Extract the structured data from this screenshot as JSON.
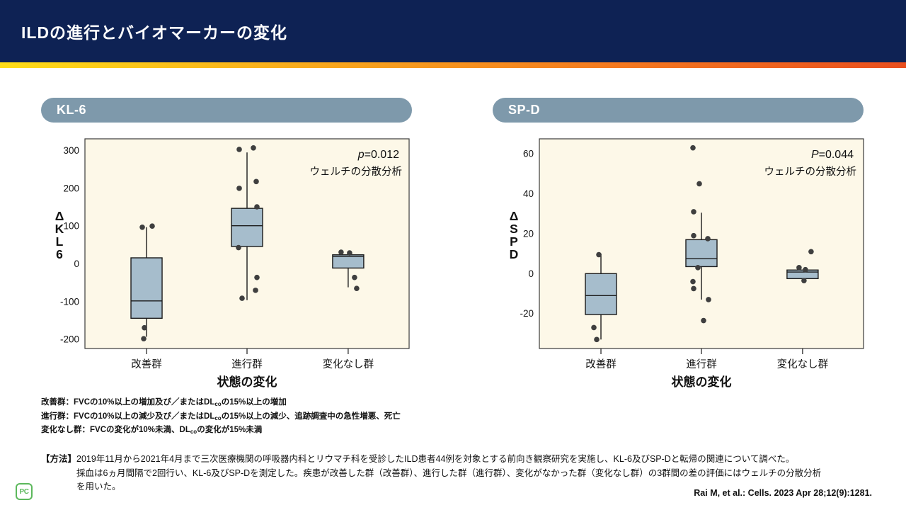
{
  "header": {
    "title": "ILDの進行とバイオマーカーの変化"
  },
  "palette": {
    "header_bg": "#0e2254",
    "gradient": [
      "#ffdd17",
      "#f8a81c",
      "#f4791f",
      "#e94e1e"
    ],
    "pill_bg": "#7e99ab",
    "plot_bg": "#fdf8e8",
    "plot_border": "#3a3a3a",
    "box_fill": "#a6bdcc",
    "box_stroke": "#1b1b1b",
    "dot_color": "#3f3f3f",
    "logo_green": "#5cb85c"
  },
  "chart_data": [
    {
      "type": "boxplot",
      "panel_label": "KL-6",
      "stat": {
        "label": "p",
        "rest": "=0.012"
      },
      "method_note": "ウェルチの分散分析",
      "ylabel_chars": [
        "Δ",
        "K",
        "L",
        "6"
      ],
      "xlabel": "状態の変化",
      "categories": [
        "改善群",
        "進行群",
        "変化なし群"
      ],
      "ylim": [
        -224,
        331
      ],
      "yticks": [
        300,
        200,
        100,
        0,
        -100,
        -200
      ],
      "grid": false,
      "groups": [
        {
          "name": "改善群",
          "q1": -144,
          "median": -98,
          "q3": 16,
          "whisker_low": -193,
          "whisker_high": 97,
          "points": [
            [
              -6,
              97
            ],
            [
              8,
              100
            ],
            [
              -3,
              -169
            ],
            [
              -4,
              -198
            ]
          ]
        },
        {
          "name": "進行群",
          "q1": 46,
          "median": 101,
          "q3": 147,
          "whisker_low": -96,
          "whisker_high": 295,
          "points": [
            [
              -11,
              303
            ],
            [
              9,
              307
            ],
            [
              13,
              218
            ],
            [
              -11,
              200
            ],
            [
              14,
              151
            ],
            [
              -12,
              43
            ],
            [
              14,
              -36
            ],
            [
              12,
              -70
            ],
            [
              -7,
              -91
            ]
          ]
        },
        {
          "name": "変化なし群",
          "q1": -11,
          "median": 20,
          "q3": 24,
          "whisker_low": -62,
          "whisker_high": 24,
          "points": [
            [
              -10,
              31
            ],
            [
              2,
              29
            ],
            [
              9,
              -36
            ],
            [
              12,
              -65
            ]
          ]
        }
      ]
    },
    {
      "type": "boxplot",
      "panel_label": "SP-D",
      "stat": {
        "label": "P",
        "rest": "=0.044"
      },
      "method_note": "ウェルチの分散分析",
      "ylabel_chars": [
        "Δ",
        "S",
        "P",
        "D"
      ],
      "xlabel": "状態の変化",
      "categories": [
        "改善群",
        "進行群",
        "変化なし群"
      ],
      "ylim": [
        -37.5,
        67.5
      ],
      "yticks": [
        60,
        40,
        20,
        0,
        -20
      ],
      "grid": false,
      "groups": [
        {
          "name": "改善群",
          "q1": -20.5,
          "median": -11,
          "q3": 0,
          "whisker_low": -33,
          "whisker_high": 10,
          "points": [
            [
              -3,
              9.5
            ],
            [
              -10,
              -27
            ],
            [
              -6,
              -33
            ]
          ]
        },
        {
          "name": "進行群",
          "q1": 3.5,
          "median": 7.5,
          "q3": 17,
          "whisker_low": -13,
          "whisker_high": 30.5,
          "points": [
            [
              -12,
              63
            ],
            [
              -3,
              45
            ],
            [
              -11,
              31
            ],
            [
              -11,
              19
            ],
            [
              9,
              17.5
            ],
            [
              -5,
              3
            ],
            [
              -12,
              -4
            ],
            [
              -11,
              -7.5
            ],
            [
              10,
              -13
            ],
            [
              3,
              -23.5
            ]
          ]
        },
        {
          "name": "変化なし群",
          "q1": -2.5,
          "median": 0.8,
          "q3": 1.8,
          "whisker_low": -4.5,
          "whisker_high": 1.8,
          "points": [
            [
              12,
              11
            ],
            [
              -5,
              3
            ],
            [
              4,
              2
            ],
            [
              2,
              -3.5
            ]
          ]
        }
      ]
    }
  ],
  "footnotes": {
    "lines": [
      {
        "pre": "改善群：FVCの10%以上の増加及び／またはDL",
        "sub": "co",
        "post": "の15%以上の増加"
      },
      {
        "pre": "進行群：FVCの10%以上の減少及び／またはDL",
        "sub": "co",
        "post": "の15%以上の減少、追跡調査中の急性増悪、死亡"
      },
      {
        "pre": "変化なし群：FVCの変化が10%未満、DL",
        "sub": "co",
        "post": "の変化が15%未満"
      }
    ]
  },
  "method": {
    "label": "【方法】",
    "lines": [
      "2019年11月から2021年4月まで三次医療機関の呼吸器内科とリウマチ科を受診したILD患者44例を対象とする前向き観察研究を実施し、KL-6及びSP-Dと転帰の関連について調べた。",
      "採血は6ヵ月間隔で2回行い、KL-6及びSP-Dを測定した。疾患が改善した群（改善群）、進行した群（進行群）、変化がなかった群（変化なし群）の3群間の差の評価にはウェルチの分散分析",
      "を用いた。"
    ]
  },
  "citation": "Rai M, et al.: Cells. 2023 Apr 28;12(9):1281.",
  "logo": {
    "text": "PC"
  }
}
